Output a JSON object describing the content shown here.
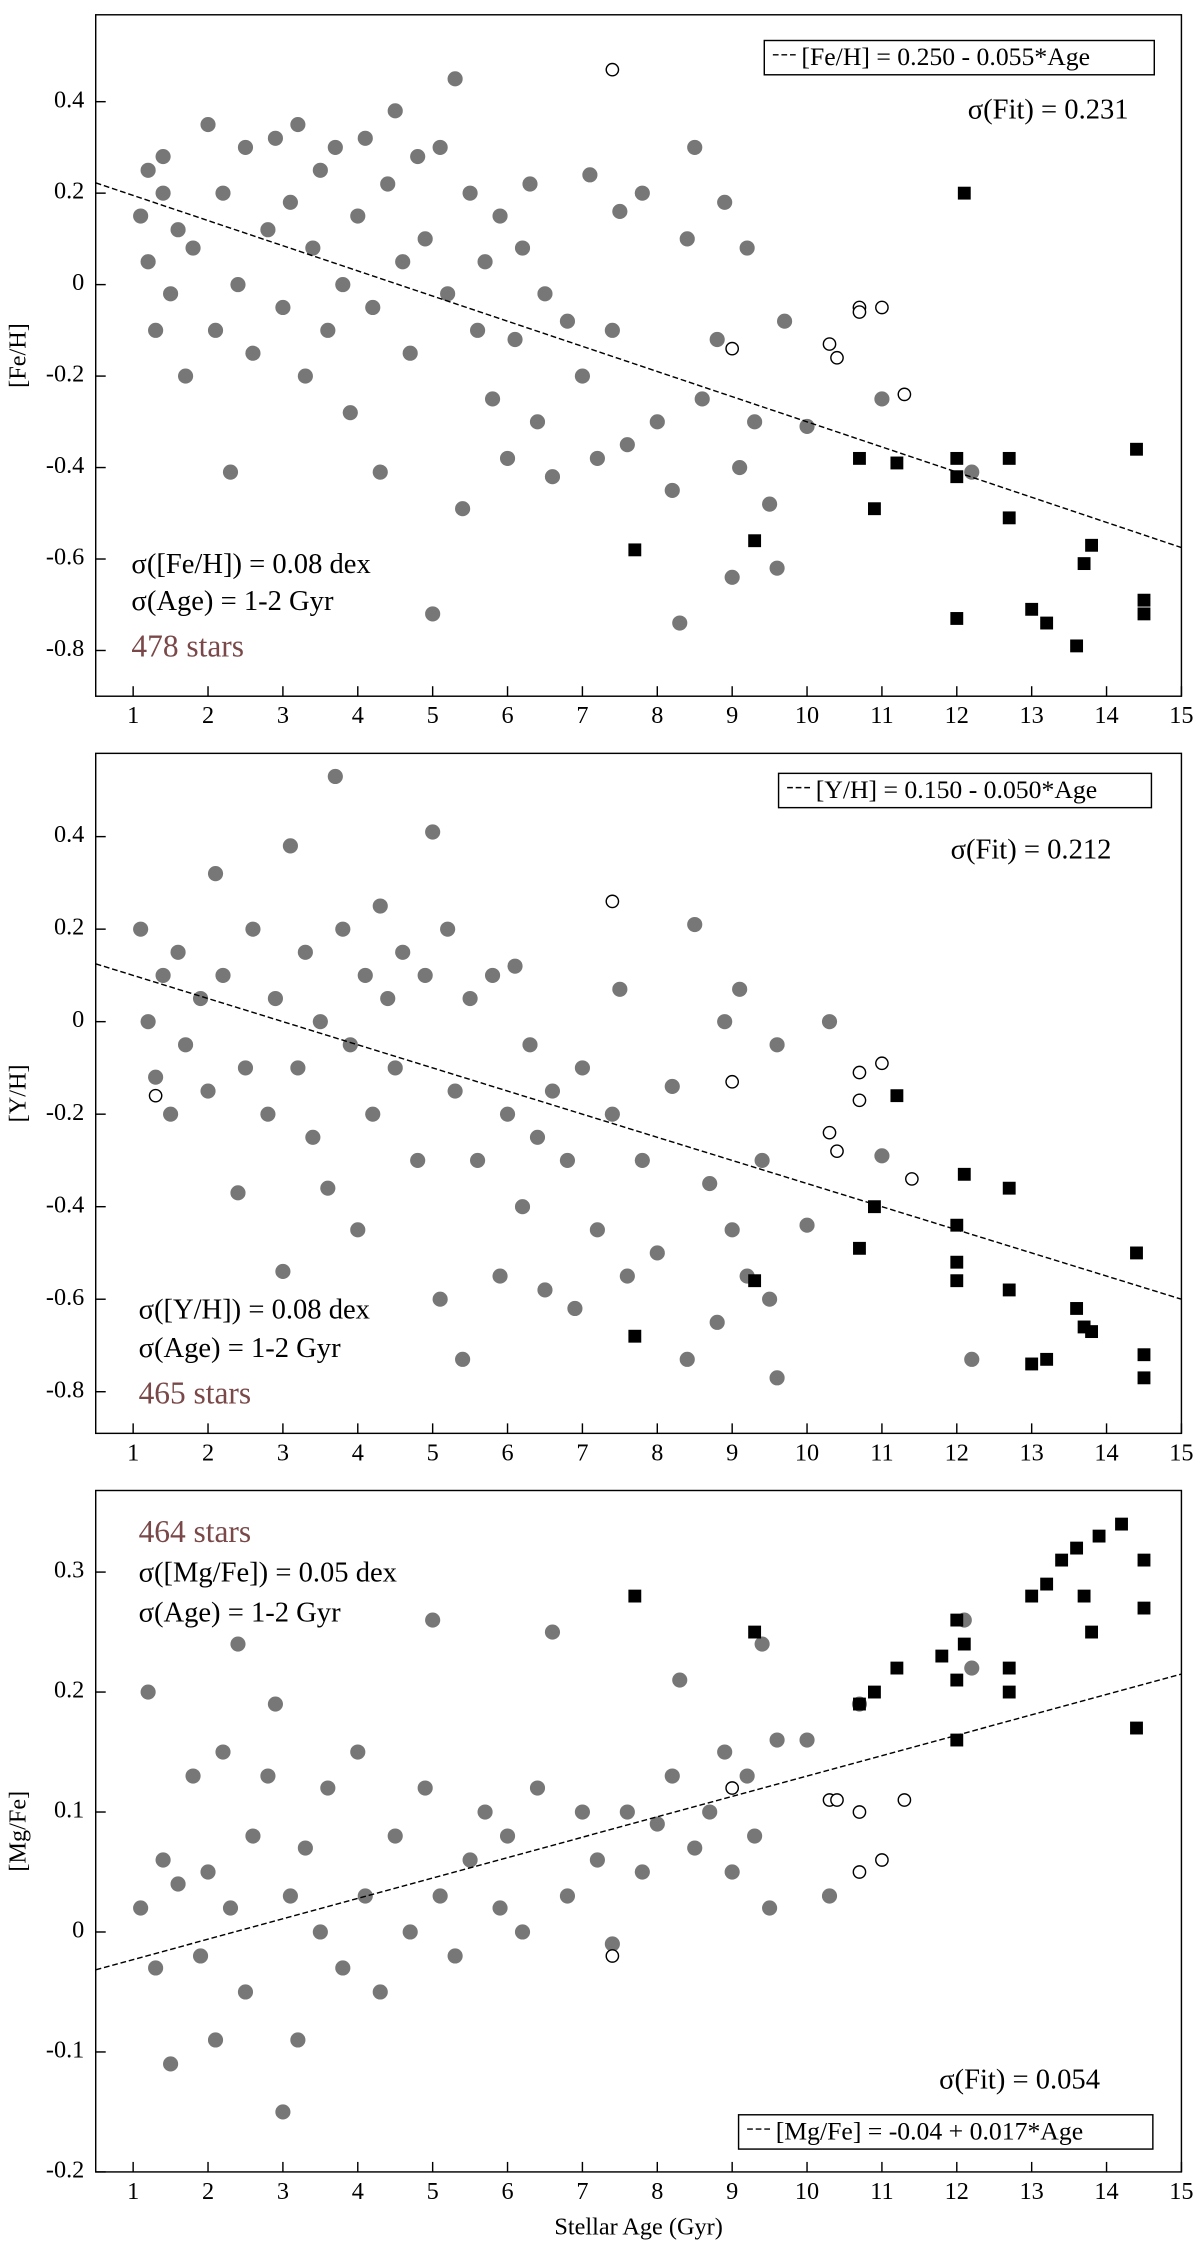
{
  "chart_data": [
    {
      "type": "scatter",
      "ylabel": "[Fe/H]",
      "xlim": [
        0.5,
        15
      ],
      "xticks": [
        1,
        2,
        3,
        4,
        5,
        6,
        7,
        8,
        9,
        10,
        11,
        12,
        13,
        14,
        15
      ],
      "ylim": [
        -0.9,
        0.59
      ],
      "yticks": [
        -0.8,
        -0.6,
        -0.4,
        -0.2,
        0,
        0.2,
        0.4
      ],
      "stats": [
        "σ([Fe/H]) = 0.08 dex",
        "σ(Age) = 1-2 Gyr"
      ],
      "stars": "478 stars",
      "sigma_fit": "σ(Fit) = 0.231",
      "fit": {
        "label": "[Fe/H] = 0.250 - 0.055*Age",
        "intercept": 0.25,
        "slope": -0.055
      },
      "series": [
        {
          "marker": "circle",
          "color": "#777777",
          "x": [
            1.1,
            1.2,
            1.3,
            1.4,
            1.5,
            1.6,
            1.7,
            1.2,
            1.4,
            1.8,
            2.0,
            2.1,
            2.2,
            2.3,
            2.4,
            2.5,
            2.6,
            2.8,
            2.9,
            3.0,
            3.1,
            3.2,
            3.3,
            3.4,
            3.5,
            3.6,
            3.7,
            3.8,
            3.9,
            4.0,
            4.1,
            4.2,
            4.3,
            4.4,
            4.5,
            4.6,
            4.7,
            4.8,
            4.9,
            5.0,
            5.1,
            5.2,
            5.3,
            5.4,
            5.5,
            5.6,
            5.7,
            5.8,
            5.9,
            6.0,
            6.1,
            6.2,
            6.3,
            6.4,
            6.5,
            6.6,
            6.8,
            7.0,
            7.1,
            7.2,
            7.4,
            7.5,
            7.6,
            7.8,
            8.0,
            8.2,
            8.3,
            8.4,
            8.5,
            8.6,
            8.8,
            8.9,
            9.0,
            9.1,
            9.2,
            9.3,
            9.5,
            9.6,
            9.7,
            10.0,
            11.0,
            12.2
          ],
          "values": [
            0.15,
            0.05,
            -0.1,
            0.2,
            -0.02,
            0.12,
            -0.2,
            0.25,
            0.28,
            0.08,
            0.35,
            -0.1,
            0.2,
            -0.41,
            0.0,
            0.3,
            -0.15,
            0.12,
            0.32,
            -0.05,
            0.18,
            0.35,
            -0.2,
            0.08,
            0.25,
            -0.1,
            0.3,
            0.0,
            -0.28,
            0.15,
            0.32,
            -0.05,
            -0.41,
            0.22,
            0.38,
            0.05,
            -0.15,
            0.28,
            0.1,
            -0.72,
            0.3,
            -0.02,
            0.45,
            -0.49,
            0.2,
            -0.1,
            0.05,
            -0.25,
            0.15,
            -0.38,
            -0.12,
            0.08,
            0.22,
            -0.3,
            -0.02,
            -0.42,
            -0.08,
            -0.2,
            0.24,
            -0.38,
            -0.1,
            0.16,
            -0.35,
            0.2,
            -0.3,
            -0.45,
            -0.74,
            0.1,
            0.3,
            -0.25,
            -0.12,
            0.18,
            -0.64,
            -0.4,
            0.08,
            -0.3,
            -0.48,
            -0.62,
            -0.08,
            -0.31,
            -0.25,
            -0.41
          ]
        },
        {
          "marker": "open-circle",
          "color": "#000000",
          "x": [
            7.4,
            9.0,
            10.3,
            10.4,
            10.7,
            10.7,
            11.0,
            11.3
          ],
          "values": [
            0.47,
            -0.14,
            -0.13,
            -0.16,
            -0.05,
            -0.06,
            -0.05,
            -0.24
          ]
        },
        {
          "marker": "square",
          "color": "#000000",
          "x": [
            7.7,
            9.3,
            10.7,
            10.9,
            11.2,
            12.0,
            12.0,
            12.1,
            12.0,
            12.7,
            12.7,
            13.0,
            13.2,
            13.6,
            13.7,
            13.8,
            14.4,
            14.5,
            14.5
          ],
          "values": [
            -0.58,
            -0.56,
            -0.38,
            -0.49,
            -0.39,
            -0.38,
            -0.42,
            0.2,
            -0.73,
            -0.38,
            -0.51,
            -0.71,
            -0.74,
            -0.79,
            -0.61,
            -0.57,
            -0.36,
            -0.69,
            -0.72
          ]
        }
      ]
    },
    {
      "type": "scatter",
      "ylabel": "[Y/H]",
      "xlim": [
        0.5,
        15
      ],
      "xticks": [
        1,
        2,
        3,
        4,
        5,
        6,
        7,
        8,
        9,
        10,
        11,
        12,
        13,
        14,
        15
      ],
      "ylim": [
        -0.89,
        0.58
      ],
      "yticks": [
        -0.8,
        -0.6,
        -0.4,
        -0.2,
        0,
        0.2,
        0.4
      ],
      "stats": [
        "σ([Y/H]) = 0.08 dex",
        "σ(Age) = 1-2 Gyr"
      ],
      "stars": "465 stars",
      "sigma_fit": "σ(Fit) = 0.212",
      "fit": {
        "label": "[Y/H] = 0.150 - 0.050*Age",
        "intercept": 0.15,
        "slope": -0.05
      },
      "series": [
        {
          "marker": "circle",
          "color": "#777777",
          "x": [
            1.1,
            1.2,
            1.3,
            1.4,
            1.5,
            1.6,
            1.7,
            1.9,
            2.0,
            2.1,
            2.2,
            2.4,
            2.5,
            2.6,
            2.8,
            2.9,
            3.0,
            3.1,
            3.2,
            3.3,
            3.4,
            3.5,
            3.6,
            3.7,
            3.8,
            3.9,
            4.0,
            4.1,
            4.2,
            4.3,
            4.4,
            4.5,
            4.6,
            4.8,
            4.9,
            5.0,
            5.1,
            5.2,
            5.3,
            5.4,
            5.5,
            5.6,
            5.8,
            5.9,
            6.0,
            6.1,
            6.2,
            6.3,
            6.4,
            6.5,
            6.6,
            6.8,
            6.9,
            7.0,
            7.2,
            7.4,
            7.5,
            7.6,
            7.8,
            8.0,
            8.2,
            8.4,
            8.5,
            8.7,
            8.8,
            8.9,
            9.0,
            9.1,
            9.2,
            9.4,
            9.5,
            9.6,
            9.6,
            10.0,
            10.3,
            11.0,
            12.2
          ],
          "values": [
            0.2,
            0.0,
            -0.12,
            0.1,
            -0.2,
            0.15,
            -0.05,
            0.05,
            -0.15,
            0.32,
            0.1,
            -0.37,
            -0.1,
            0.2,
            -0.2,
            0.05,
            -0.54,
            0.38,
            -0.1,
            0.15,
            -0.25,
            0.0,
            -0.36,
            0.53,
            0.2,
            -0.05,
            -0.45,
            0.1,
            -0.2,
            0.25,
            0.05,
            -0.1,
            0.15,
            -0.3,
            0.1,
            0.41,
            -0.6,
            0.2,
            -0.15,
            -0.73,
            0.05,
            -0.3,
            0.1,
            -0.55,
            -0.2,
            0.12,
            -0.4,
            -0.05,
            -0.25,
            -0.58,
            -0.15,
            -0.3,
            -0.62,
            -0.1,
            -0.45,
            -0.2,
            0.07,
            -0.55,
            -0.3,
            -0.5,
            -0.14,
            -0.73,
            0.21,
            -0.35,
            -0.65,
            0.0,
            -0.45,
            0.07,
            -0.55,
            -0.3,
            -0.6,
            -0.77,
            -0.05,
            -0.44,
            0.0,
            -0.29,
            -0.73
          ]
        },
        {
          "marker": "open-circle",
          "color": "#000000",
          "x": [
            7.4,
            9.0,
            10.3,
            10.4,
            10.7,
            10.7,
            11.0,
            11.4,
            1.3
          ],
          "values": [
            0.26,
            -0.13,
            -0.24,
            -0.28,
            -0.11,
            -0.17,
            -0.09,
            -0.34,
            -0.16
          ]
        },
        {
          "marker": "square",
          "color": "#000000",
          "x": [
            7.7,
            9.3,
            10.7,
            10.9,
            11.2,
            12.0,
            12.0,
            12.0,
            12.1,
            12.7,
            12.7,
            13.0,
            13.2,
            13.6,
            13.7,
            13.8,
            14.4,
            14.5,
            14.5
          ],
          "values": [
            -0.68,
            -0.56,
            -0.49,
            -0.4,
            -0.16,
            -0.44,
            -0.52,
            -0.56,
            -0.33,
            -0.36,
            -0.58,
            -0.74,
            -0.73,
            -0.62,
            -0.66,
            -0.67,
            -0.5,
            -0.72,
            -0.77
          ]
        }
      ]
    },
    {
      "type": "scatter",
      "ylabel": "[Mg/Fe]",
      "xlabel": "Stellar Age (Gyr)",
      "xlim": [
        0.5,
        15
      ],
      "xticks": [
        1,
        2,
        3,
        4,
        5,
        6,
        7,
        8,
        9,
        10,
        11,
        12,
        13,
        14,
        15
      ],
      "ylim": [
        -0.2,
        0.368
      ],
      "yticks": [
        -0.2,
        -0.1,
        0,
        0.1,
        0.2,
        0.3
      ],
      "stats": [
        "σ([Mg/Fe]) = 0.05 dex",
        "σ(Age) = 1-2 Gyr"
      ],
      "stars": "464 stars",
      "sigma_fit": "σ(Fit) = 0.054",
      "fit": {
        "label": "[Mg/Fe] = -0.04 + 0.017*Age",
        "intercept": -0.04,
        "slope": 0.017
      },
      "series": [
        {
          "marker": "circle",
          "color": "#777777",
          "x": [
            1.1,
            1.2,
            1.3,
            1.4,
            1.5,
            1.6,
            1.8,
            1.9,
            2.0,
            2.1,
            2.2,
            2.3,
            2.4,
            2.5,
            2.6,
            2.8,
            2.9,
            3.0,
            3.1,
            3.2,
            3.3,
            3.5,
            3.6,
            3.8,
            4.0,
            4.1,
            4.3,
            4.5,
            4.7,
            4.9,
            5.0,
            5.1,
            5.3,
            5.5,
            5.7,
            5.9,
            6.0,
            6.2,
            6.4,
            6.6,
            6.8,
            7.0,
            7.2,
            7.4,
            7.6,
            7.8,
            8.0,
            8.2,
            8.3,
            8.5,
            8.7,
            8.9,
            9.0,
            9.2,
            9.3,
            9.4,
            9.5,
            9.6,
            10.0,
            10.3,
            10.7,
            12.1,
            12.2
          ],
          "values": [
            0.02,
            0.2,
            -0.03,
            0.06,
            -0.11,
            0.04,
            0.13,
            -0.02,
            0.05,
            -0.09,
            0.15,
            0.02,
            0.24,
            -0.05,
            0.08,
            0.13,
            0.19,
            -0.15,
            0.03,
            -0.09,
            0.07,
            0.0,
            0.12,
            -0.03,
            0.15,
            0.03,
            -0.05,
            0.08,
            0.0,
            0.12,
            0.26,
            0.03,
            -0.02,
            0.06,
            0.1,
            0.02,
            0.08,
            0.0,
            0.12,
            0.25,
            0.03,
            0.1,
            0.06,
            -0.01,
            0.1,
            0.05,
            0.09,
            0.13,
            0.21,
            0.07,
            0.1,
            0.15,
            0.05,
            0.13,
            0.08,
            0.24,
            0.02,
            0.16,
            0.16,
            0.03,
            0.19,
            0.26,
            0.22
          ]
        },
        {
          "marker": "open-circle",
          "color": "#000000",
          "x": [
            7.4,
            9.0,
            10.3,
            10.4,
            10.7,
            10.7,
            11.0,
            11.3
          ],
          "values": [
            -0.02,
            0.12,
            0.11,
            0.11,
            0.1,
            0.05,
            0.06,
            0.11
          ]
        },
        {
          "marker": "square",
          "color": "#000000",
          "x": [
            7.7,
            9.3,
            10.7,
            10.9,
            11.2,
            11.8,
            12.0,
            12.0,
            12.0,
            12.1,
            12.7,
            12.7,
            13.0,
            13.2,
            13.4,
            13.6,
            13.7,
            13.8,
            13.9,
            14.2,
            14.4,
            14.5,
            14.5
          ],
          "values": [
            0.28,
            0.25,
            0.19,
            0.2,
            0.22,
            0.23,
            0.26,
            0.21,
            0.16,
            0.24,
            0.22,
            0.2,
            0.28,
            0.29,
            0.31,
            0.32,
            0.28,
            0.25,
            0.33,
            0.34,
            0.17,
            0.31,
            0.27
          ]
        }
      ]
    }
  ]
}
